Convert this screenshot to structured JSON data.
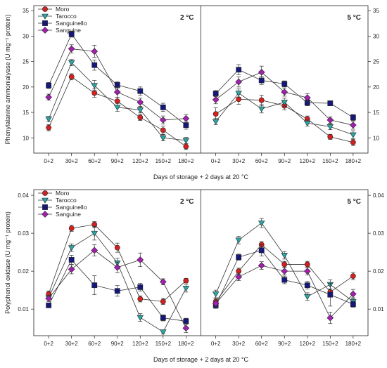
{
  "series_styles": [
    {
      "name": "Moro",
      "color": "#d62020",
      "marker": "circle"
    },
    {
      "name": "Tarocco",
      "color": "#2aa6a6",
      "marker": "triangle-down"
    },
    {
      "name": "Sanguinello",
      "color": "#15187a",
      "marker": "square"
    },
    {
      "name": "Sanguine",
      "color": "#a21fb0",
      "marker": "diamond"
    }
  ],
  "chart_data": [
    {
      "type": "line",
      "title": "",
      "xlabel": "Days of storage + 2 days at 20 °C",
      "ylabel": "Phenylalanine ammonialyase (U mg⁻¹ protein)",
      "categories": [
        "0+2",
        "30+2",
        "60+2",
        "90+2",
        "120+2",
        "150+2",
        "180+2"
      ],
      "ylim": [
        7,
        36
      ],
      "yticks": [
        10,
        15,
        20,
        25,
        30,
        35
      ],
      "panels": [
        {
          "label": "2 °C",
          "series": [
            {
              "name": "Moro",
              "values": [
                12.0,
                22.0,
                18.8,
                17.2,
                14.0,
                11.5,
                8.3
              ],
              "errors": [
                0.6,
                0.6,
                0.8,
                0.8,
                0.6,
                0.8,
                0.6
              ]
            },
            {
              "name": "Tarocco",
              "values": [
                13.7,
                24.8,
                20.3,
                16.0,
                15.5,
                10.0,
                9.5
              ],
              "errors": [
                0.5,
                0.6,
                1.0,
                0.8,
                0.6,
                0.6,
                0.6
              ]
            },
            {
              "name": "Sanguinello",
              "values": [
                20.3,
                30.4,
                24.3,
                20.4,
                19.2,
                16.0,
                12.5
              ],
              "errors": [
                0.6,
                0.6,
                1.0,
                0.6,
                0.8,
                0.8,
                0.8
              ]
            },
            {
              "name": "Sanguine",
              "values": [
                18.0,
                27.5,
                27.0,
                19.0,
                17.0,
                13.5,
                13.8
              ],
              "errors": [
                0.6,
                0.8,
                1.2,
                1.0,
                0.8,
                0.8,
                0.8
              ]
            }
          ]
        },
        {
          "label": "5 °C",
          "series": [
            {
              "name": "Moro",
              "values": [
                14.7,
                17.6,
                17.4,
                16.3,
                13.7,
                10.2,
                9.1
              ],
              "errors": [
                1.2,
                1.0,
                1.0,
                0.8,
                0.6,
                0.5,
                0.6
              ]
            },
            {
              "name": "Tarocco",
              "values": [
                13.2,
                18.8,
                15.7,
                17.0,
                12.9,
                12.2,
                10.6
              ],
              "errors": [
                0.6,
                0.8,
                0.8,
                0.8,
                0.6,
                0.6,
                0.8
              ]
            },
            {
              "name": "Sanguinello",
              "values": [
                18.7,
                23.4,
                21.3,
                20.6,
                16.9,
                16.8,
                14.0
              ],
              "errors": [
                0.6,
                1.0,
                0.8,
                0.6,
                0.6,
                0.4,
                0.6
              ]
            },
            {
              "name": "Sanguine",
              "values": [
                17.5,
                21.0,
                22.9,
                19.0,
                17.9,
                13.5,
                12.5
              ],
              "errors": [
                0.8,
                1.0,
                1.2,
                0.8,
                0.8,
                0.6,
                0.8
              ]
            }
          ]
        }
      ]
    },
    {
      "type": "line",
      "title": "",
      "xlabel": "Days of storage + 2 days at 20 °C",
      "ylabel": "Polyphenol oxidase (U mg⁻¹ protein)",
      "categories": [
        "0+2",
        "30+2",
        "60+2",
        "90+2",
        "120+2",
        "150+2",
        "180+2"
      ],
      "ylim": [
        0.003,
        0.0415
      ],
      "yticks": [
        0.01,
        0.02,
        0.03,
        0.04
      ],
      "panels": [
        {
          "label": "2 °C",
          "series": [
            {
              "name": "Moro",
              "values": [
                0.014,
                0.0313,
                0.0323,
                0.0262,
                0.0127,
                0.012,
                0.0175
              ],
              "errors": [
                0.0008,
                0.0008,
                0.0008,
                0.0012,
                0.0008,
                0.0008,
                0.0006
              ]
            },
            {
              "name": "Tarocco",
              "values": [
                0.013,
                0.0262,
                0.03,
                0.0222,
                0.0078,
                0.004,
                0.0155
              ],
              "errors": [
                0.0006,
                0.001,
                0.0018,
                0.0012,
                0.001,
                0.0005,
                0.001
              ]
            },
            {
              "name": "Sanguinello",
              "values": [
                0.011,
                0.023,
                0.0163,
                0.0148,
                0.0158,
                0.0077,
                0.0068
              ],
              "errors": [
                0.0006,
                0.0012,
                0.0025,
                0.0014,
                0.001,
                0.0008,
                0.0008
              ]
            },
            {
              "name": "Sanguine",
              "values": [
                0.0128,
                0.0205,
                0.0255,
                0.021,
                0.023,
                0.0172,
                0.005
              ],
              "errors": [
                0.0008,
                0.0012,
                0.0015,
                0.0014,
                0.0018,
                0.0008,
                0.0012
              ]
            }
          ]
        },
        {
          "label": "5 °C",
          "series": [
            {
              "name": "Moro",
              "values": [
                0.012,
                0.02,
                0.027,
                0.0218,
                0.0218,
                0.0145,
                0.0187
              ],
              "errors": [
                0.0008,
                0.0008,
                0.0008,
                0.0008,
                0.0008,
                0.0008,
                0.001
              ]
            },
            {
              "name": "Tarocco",
              "values": [
                0.014,
                0.0282,
                0.0327,
                0.0242,
                0.0133,
                0.0165,
                0.012
              ],
              "errors": [
                0.001,
                0.001,
                0.0012,
                0.001,
                0.001,
                0.0012,
                0.001
              ]
            },
            {
              "name": "Sanguinello",
              "values": [
                0.011,
                0.0237,
                0.0255,
                0.0177,
                0.0163,
                0.0138,
                0.0113
              ],
              "errors": [
                0.0008,
                0.0008,
                0.0015,
                0.001,
                0.001,
                0.003,
                0.0008
              ]
            },
            {
              "name": "Sanguine",
              "values": [
                0.0115,
                0.0185,
                0.0215,
                0.02,
                0.02,
                0.0077,
                0.014
              ],
              "errors": [
                0.0008,
                0.001,
                0.001,
                0.001,
                0.001,
                0.0015,
                0.0012
              ]
            }
          ]
        }
      ]
    }
  ]
}
